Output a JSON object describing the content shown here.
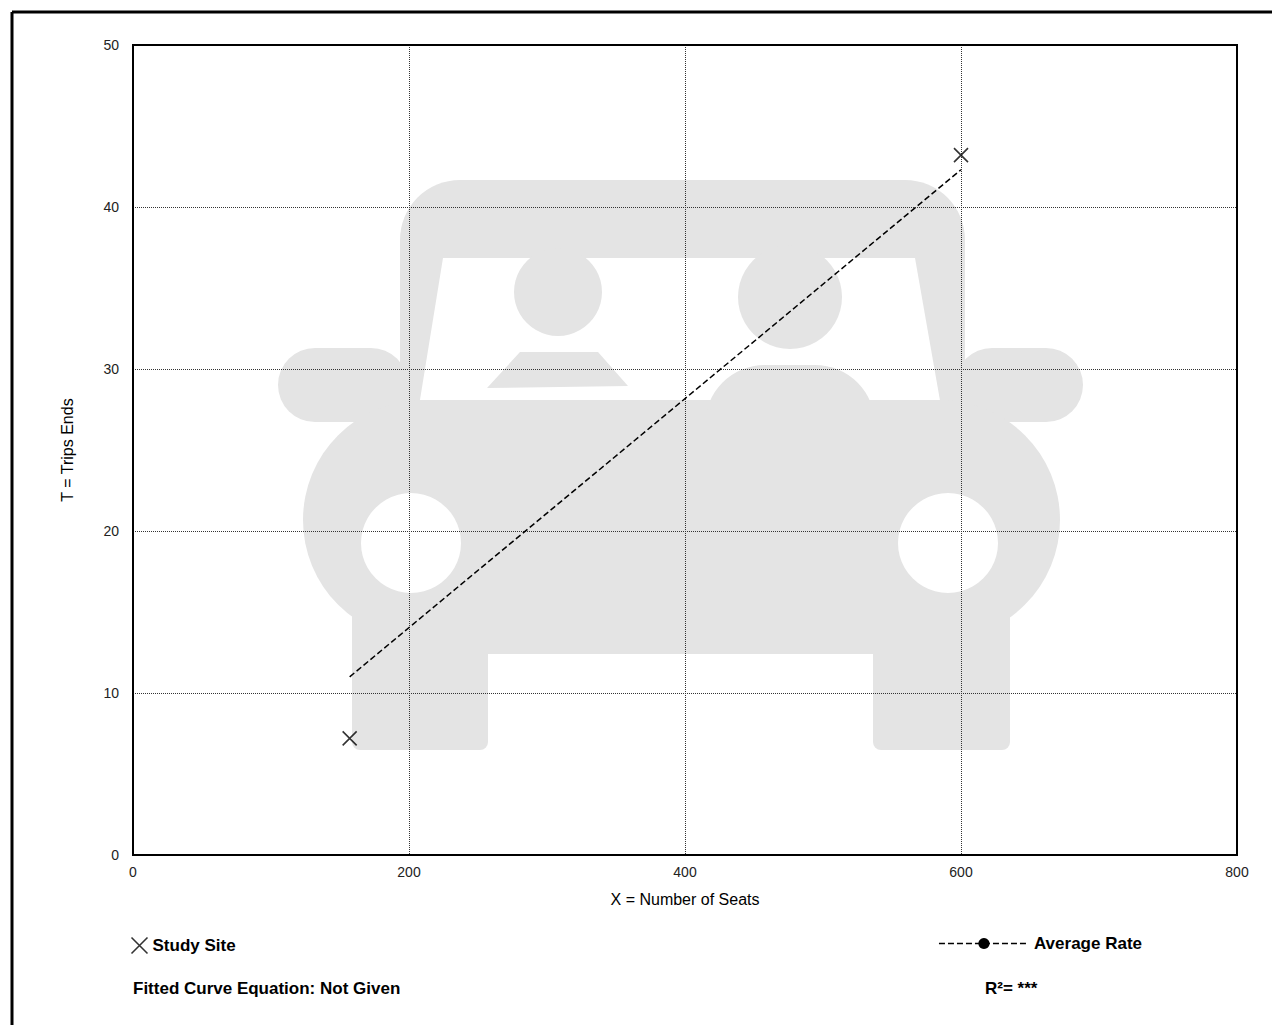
{
  "chart_data": {
    "type": "scatter",
    "x_label": "X = Number of Seats",
    "y_label": "T = Trips Ends",
    "xlim": [
      0,
      800
    ],
    "xticks": [
      0,
      200,
      400,
      600,
      800
    ],
    "ylim": [
      0,
      50
    ],
    "yticks": [
      0,
      10,
      20,
      30,
      40,
      50
    ],
    "grid": true,
    "legend": "bottom",
    "series": [
      {
        "name": "Study Site",
        "type": "scatter",
        "marker": "x",
        "color": "#000000",
        "x": [
          157,
          600
        ],
        "values": [
          7.2,
          43.2
        ]
      },
      {
        "name": "Average Rate",
        "type": "line",
        "line_style": "dashed",
        "color": "#000000",
        "x": [
          157,
          600
        ],
        "values": [
          11,
          42.3
        ]
      }
    ],
    "annotations": [
      "Fitted Curve Equation: Not Given",
      "R²= ***"
    ]
  }
}
